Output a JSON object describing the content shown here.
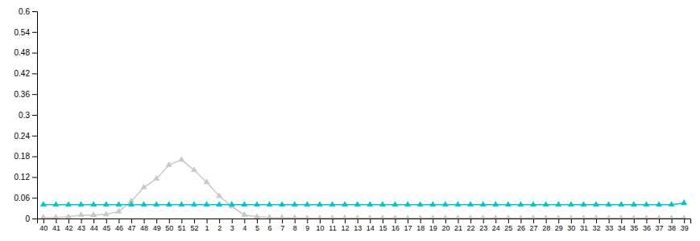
{
  "chart_data": {
    "type": "line",
    "categories": [
      "40",
      "41",
      "42",
      "43",
      "44",
      "45",
      "46",
      "47",
      "48",
      "49",
      "50",
      "51",
      "52",
      "1",
      "2",
      "3",
      "4",
      "5",
      "6",
      "7",
      "8",
      "9",
      "10",
      "11",
      "12",
      "13",
      "14",
      "15",
      "16",
      "17",
      "18",
      "19",
      "20",
      "21",
      "22",
      "23",
      "24",
      "25",
      "26",
      "27",
      "28",
      "29",
      "30",
      "31",
      "32",
      "33",
      "34",
      "35",
      "36",
      "37",
      "38",
      "39"
    ],
    "series": [
      {
        "color": "#c8c8c8",
        "marker": "triangle",
        "values": [
          0.003,
          0.003,
          0.005,
          0.01,
          0.01,
          0.012,
          0.02,
          0.05,
          0.09,
          0.115,
          0.155,
          0.17,
          0.14,
          0.105,
          0.065,
          0.035,
          0.01,
          0.005,
          0.003,
          0.002,
          0.002,
          0.001,
          0.001,
          0.001,
          0.001,
          0.001,
          0.001,
          0.001,
          0.001,
          0.001,
          0.001,
          0.001,
          0.001,
          0.001,
          0.001,
          0.001,
          0.001,
          0.001,
          0.001,
          0.001,
          0.001,
          0.001,
          0.001,
          0.001,
          0.001,
          0.001,
          0.001,
          0.001,
          0.001,
          0.001,
          0.001,
          0.001
        ]
      },
      {
        "color": "#00c8c8",
        "marker": "triangle",
        "values": [
          0.04,
          0.04,
          0.04,
          0.04,
          0.04,
          0.04,
          0.04,
          0.04,
          0.04,
          0.04,
          0.04,
          0.04,
          0.04,
          0.04,
          0.04,
          0.04,
          0.04,
          0.04,
          0.04,
          0.04,
          0.04,
          0.04,
          0.04,
          0.04,
          0.04,
          0.04,
          0.04,
          0.04,
          0.04,
          0.04,
          0.04,
          0.04,
          0.04,
          0.04,
          0.04,
          0.04,
          0.04,
          0.04,
          0.04,
          0.04,
          0.04,
          0.04,
          0.04,
          0.04,
          0.04,
          0.04,
          0.04,
          0.04,
          0.04,
          0.04,
          0.04,
          0.045
        ]
      }
    ],
    "ylim": [
      0,
      0.6
    ],
    "yticks": [
      0,
      0.06,
      0.12,
      0.18,
      0.24,
      0.3,
      0.36,
      0.42,
      0.48,
      0.54,
      0.6
    ],
    "grid": false
  }
}
